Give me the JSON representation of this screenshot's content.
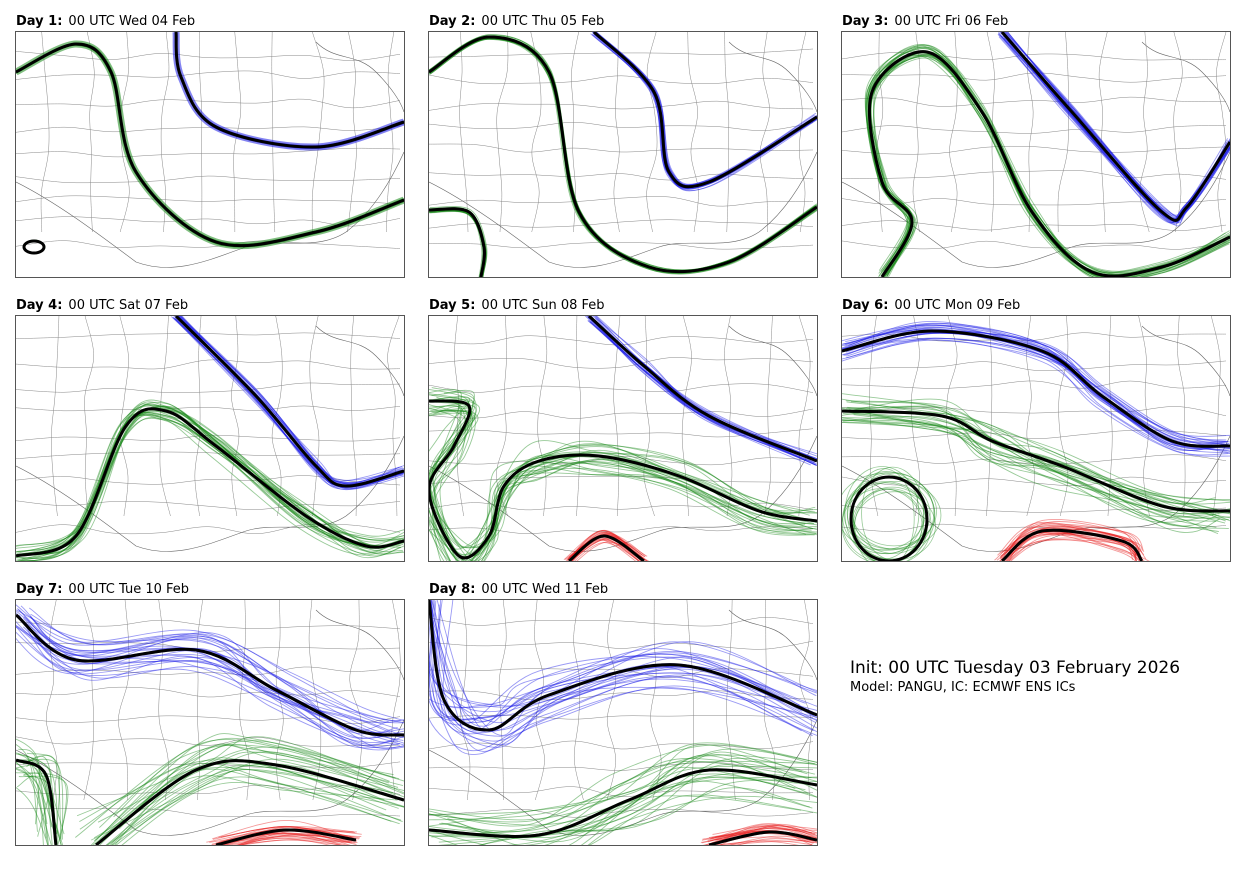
{
  "chart_data": {
    "type": "ensemble-spaghetti-map",
    "init_label": "Init: 00 UTC Tuesday 03 February 2026",
    "model_label": "Model: PANGU, IC: ECMWF ENS ICs",
    "series_colors": {
      "north": "#1f1fe6",
      "middle": "#1a8a1a",
      "south": "#e62020",
      "mean": "#000000"
    },
    "panels": [
      {
        "day_label": "Day 1:",
        "valid": "00 UTC Wed 04 Feb",
        "spread": [
          2,
          2,
          0
        ]
      },
      {
        "day_label": "Day 2:",
        "valid": "00 UTC Thu 05 Feb",
        "spread": [
          5,
          4,
          0
        ]
      },
      {
        "day_label": "Day 3:",
        "valid": "00 UTC Fri 06 Feb",
        "spread": [
          8,
          9,
          0
        ]
      },
      {
        "day_label": "Day 4:",
        "valid": "00 UTC Sat 07 Feb",
        "spread": [
          8,
          14,
          0
        ]
      },
      {
        "day_label": "Day 5:",
        "valid": "00 UTC Sun 08 Feb",
        "spread": [
          10,
          22,
          8
        ]
      },
      {
        "day_label": "Day 6:",
        "valid": "00 UTC Mon 09 Feb",
        "spread": [
          14,
          28,
          16
        ]
      },
      {
        "day_label": "Day 7:",
        "valid": "00 UTC Tue 10 Feb",
        "spread": [
          28,
          36,
          14
        ]
      },
      {
        "day_label": "Day 8:",
        "valid": "00 UTC Wed 11 Feb",
        "spread": [
          36,
          40,
          14
        ]
      }
    ]
  }
}
